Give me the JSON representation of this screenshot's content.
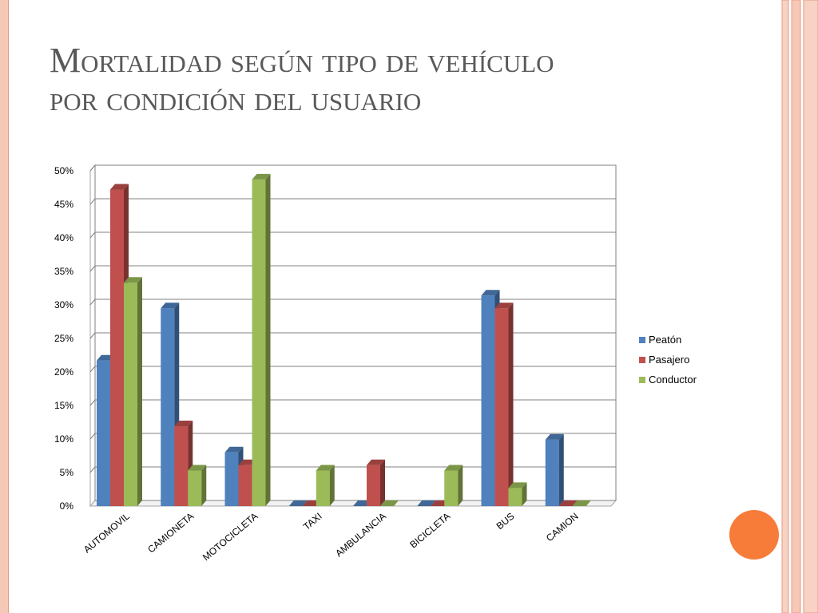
{
  "slide": {
    "title_line1": "Mortalidad según tipo de vehículo",
    "title_line2": "por condición del usuario"
  },
  "chart_data": {
    "type": "bar",
    "categories": [
      "AUTOMOVIL",
      "CAMIONETA",
      "MOTOCICLETA",
      "TAXI",
      "AMBULANCIA",
      "BICICLETA",
      "BUS",
      "CAMION"
    ],
    "series": [
      {
        "name": "Peatón",
        "color": "#4f81bd",
        "values": [
          21.7,
          29.5,
          8.0,
          0,
          0,
          0,
          31.4,
          9.9
        ]
      },
      {
        "name": "Pasajero",
        "color": "#c0504d",
        "values": [
          47.2,
          11.9,
          6.1,
          0,
          6.1,
          0,
          29.5,
          0
        ]
      },
      {
        "name": "Conductor",
        "color": "#9bbb59",
        "values": [
          33.3,
          5.3,
          48.7,
          5.3,
          0,
          5.3,
          2.7,
          0
        ]
      }
    ],
    "ylim": [
      0,
      50
    ],
    "yticks": [
      "0%",
      "5%",
      "10%",
      "15%",
      "20%",
      "25%",
      "30%",
      "35%",
      "40%",
      "45%",
      "50%"
    ],
    "grid": true,
    "legend_position": "right",
    "style": "3d-column"
  },
  "colors": {
    "accent_dot": "#f77c3a",
    "edge_stripes": "#f6c8b8"
  }
}
